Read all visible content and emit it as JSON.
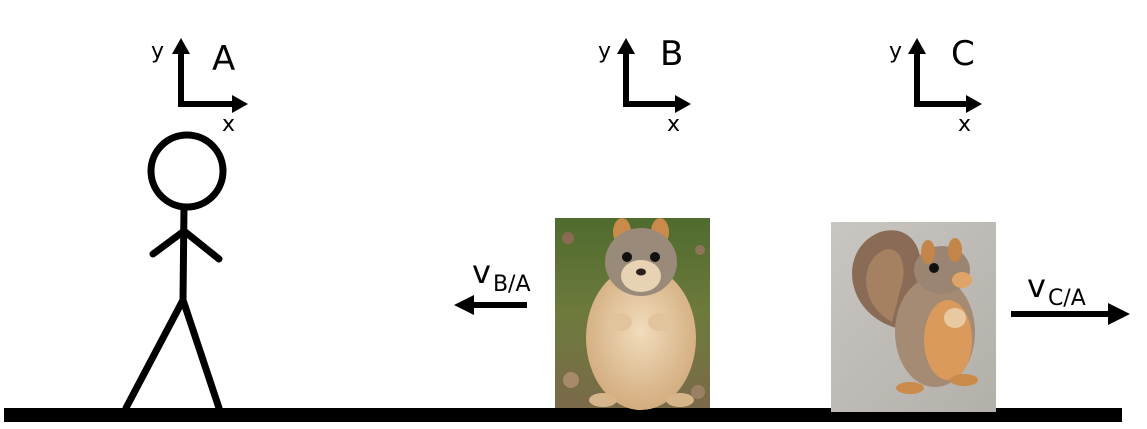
{
  "frames": [
    {
      "label": "A",
      "x_axis": "x",
      "y_axis": "y"
    },
    {
      "label": "B",
      "x_axis": "x",
      "y_axis": "y"
    },
    {
      "label": "C",
      "x_axis": "x",
      "y_axis": "y"
    }
  ],
  "velocities": [
    {
      "symbol": "v",
      "subscript": "B/A",
      "direction": "left"
    },
    {
      "symbol": "v",
      "subscript": "C/A",
      "direction": "right"
    }
  ],
  "objects": {
    "observer": "stick-figure",
    "squirrel_b": "squirrel-photo-front-on-grass",
    "squirrel_c": "squirrel-photo-side-on-pavement"
  },
  "colors": {
    "ink": "#000000",
    "background": "#ffffff"
  }
}
